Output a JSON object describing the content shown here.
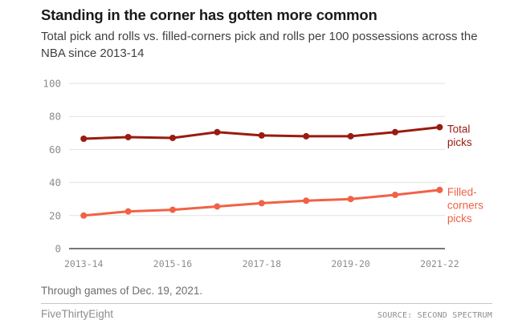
{
  "header": {
    "title": "Standing in the corner has gotten more common",
    "subtitle": "Total pick and rolls vs. filled-corners pick and rolls per 100 possessions across the NBA since 2013-14"
  },
  "chart_data": {
    "type": "line",
    "x_categories": [
      "2013-14",
      "2014-15",
      "2015-16",
      "2016-17",
      "2017-18",
      "2018-19",
      "2019-20",
      "2020-21",
      "2021-22"
    ],
    "x_tick_labels": [
      "2013-14",
      "2015-16",
      "2017-18",
      "2019-20",
      "2021-22"
    ],
    "y_ticks": [
      0,
      20,
      40,
      60,
      80,
      100
    ],
    "ylim": [
      0,
      100
    ],
    "grid": true,
    "legend_position": "right-of-line-end",
    "series": [
      {
        "name": "Total picks",
        "label_lines": [
          "Total",
          "picks"
        ],
        "color": "#9a1b10",
        "values": [
          66.5,
          67.5,
          67,
          70.5,
          68.5,
          68,
          68,
          70.5,
          73.5
        ]
      },
      {
        "name": "Filled-corners picks",
        "label_lines": [
          "Filled-",
          "corners",
          "picks"
        ],
        "color": "#f06246",
        "values": [
          20,
          22.5,
          23.5,
          25.5,
          27.5,
          29,
          30,
          32.5,
          35.5
        ]
      }
    ]
  },
  "footnote": "Through games of Dec. 19, 2021.",
  "footer": {
    "brand": "FiveThirtyEight",
    "source": "SOURCE: SECOND SPECTRUM"
  },
  "colors": {
    "total_picks": "#9a1b10",
    "filled_corners_picks": "#f06246",
    "gridline": "#e2e2e2",
    "zero_line": "#777777",
    "tick_label": "#8c8c8c"
  }
}
